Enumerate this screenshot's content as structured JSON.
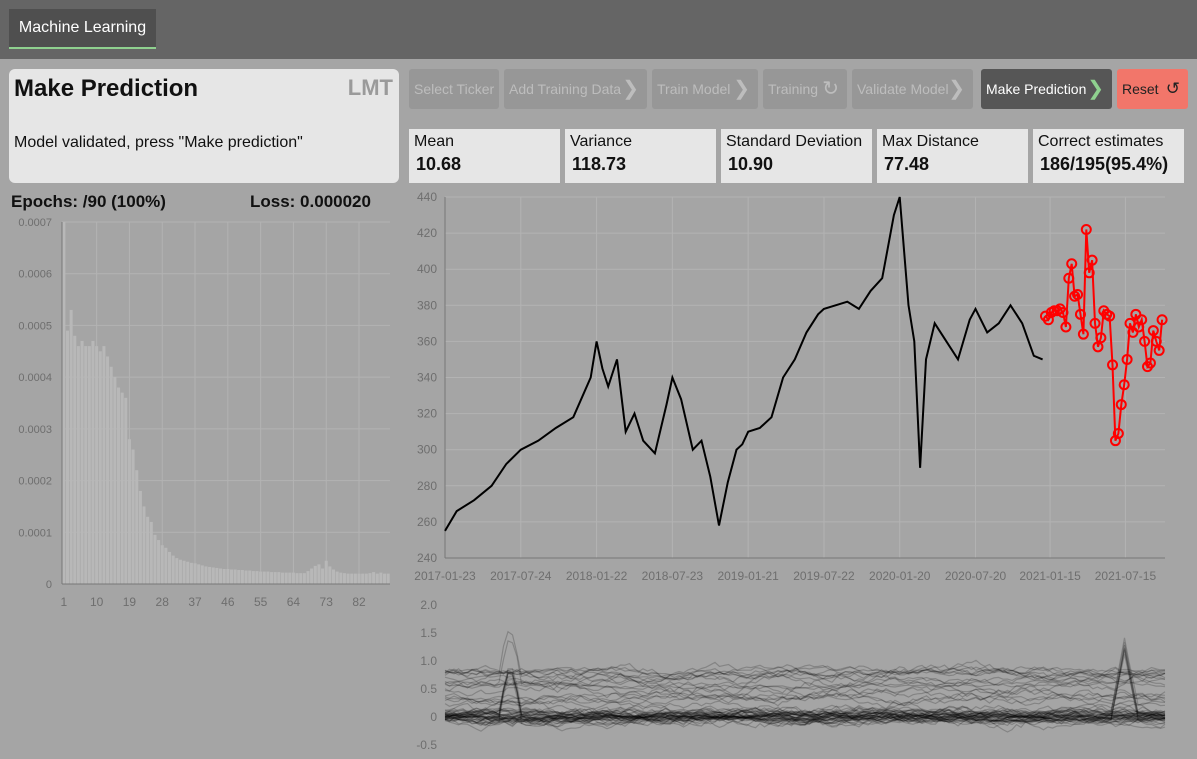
{
  "nav": {
    "tab_label": "Machine Learning"
  },
  "panel": {
    "title": "Make Prediction",
    "ticker": "LMT",
    "message": "Model validated, press \"Make prediction\""
  },
  "steps": [
    {
      "label": "Select Ticker",
      "icon": "",
      "state": "disabled"
    },
    {
      "label": "Add Training Data",
      "icon": "chevron-right-icon",
      "state": "disabled"
    },
    {
      "label": "Train Model",
      "icon": "chevron-right-icon",
      "state": "disabled"
    },
    {
      "label": "Training",
      "icon": "refresh-icon",
      "state": "disabled"
    },
    {
      "label": "Validate Model",
      "icon": "chevron-right-icon",
      "state": "disabled"
    },
    {
      "label": "Make Prediction",
      "icon": "chevron-right-icon",
      "state": "active"
    },
    {
      "label": "Reset",
      "icon": "reset-icon",
      "state": "danger"
    }
  ],
  "stats": [
    {
      "label": "Mean",
      "value": "10.68"
    },
    {
      "label": "Variance",
      "value": "118.73"
    },
    {
      "label": "Standard Deviation",
      "value": "10.90"
    },
    {
      "label": "Max Distance",
      "value": "77.48"
    },
    {
      "label": "Correct estimates",
      "value": "186/195(95.4%)"
    }
  ],
  "training": {
    "epochs_text": "Epochs: /90 (100%)",
    "loss_text": "Loss: 0.000020"
  },
  "colors": {
    "accent_green": "#8fd18f",
    "prediction_red": "#ff0000",
    "reset_red": "#f2766a"
  },
  "chart_data": [
    {
      "type": "bar",
      "name": "loss-history",
      "ylim": [
        0,
        0.0007
      ],
      "ytick_labels": [
        "0",
        "0.0001",
        "0.0002",
        "0.0003",
        "0.0004",
        "0.0005",
        "0.0006",
        "0.0007"
      ],
      "xtick_labels": [
        "1",
        "10",
        "19",
        "28",
        "37",
        "46",
        "55",
        "64",
        "73",
        "82"
      ],
      "values": [
        0.0007,
        0.00049,
        0.00053,
        0.00048,
        0.00046,
        0.00047,
        0.00046,
        0.00046,
        0.00047,
        0.00046,
        0.00045,
        0.00046,
        0.00044,
        0.00042,
        0.0004,
        0.00038,
        0.00037,
        0.00036,
        0.00028,
        0.00026,
        0.00022,
        0.00018,
        0.00015,
        0.00013,
        0.00012,
        9.5e-05,
        8.5e-05,
        7.5e-05,
        7e-05,
        6.2e-05,
        5.5e-05,
        5e-05,
        4.7e-05,
        4.5e-05,
        4.3e-05,
        4.1e-05,
        4e-05,
        3.8e-05,
        3.6e-05,
        3.4e-05,
        3.3e-05,
        3.2e-05,
        3.1e-05,
        3e-05,
        2.9e-05,
        2.9e-05,
        2.8e-05,
        2.8e-05,
        2.7e-05,
        2.7e-05,
        2.6e-05,
        2.6e-05,
        2.5e-05,
        2.5e-05,
        2.4e-05,
        2.4e-05,
        2.4e-05,
        2.3e-05,
        2.3e-05,
        2.3e-05,
        2.2e-05,
        2.2e-05,
        2.2e-05,
        2.2e-05,
        2.1e-05,
        2.1e-05,
        2.1e-05,
        2.5e-05,
        3e-05,
        3.5e-05,
        3.8e-05,
        3e-05,
        4.5e-05,
        3.4e-05,
        2.8e-05,
        2.4e-05,
        2.2e-05,
        2.1e-05,
        2e-05,
        2e-05,
        2e-05,
        2e-05,
        2e-05,
        2e-05,
        2.1e-05,
        2.3e-05,
        2e-05,
        2.2e-05,
        2e-05,
        2e-05
      ]
    },
    {
      "type": "line",
      "name": "price-history",
      "ylim": [
        240,
        440
      ],
      "ytick_labels": [
        "240",
        "260",
        "280",
        "300",
        "320",
        "340",
        "360",
        "380",
        "400",
        "420",
        "440"
      ],
      "xtick_labels": [
        "2017-01-23",
        "2017-07-24",
        "2018-01-22",
        "2018-07-23",
        "2019-01-21",
        "2019-07-22",
        "2020-01-20",
        "2020-07-20",
        "2021-01-15",
        "2021-07-15"
      ],
      "series": [
        {
          "role": "actual",
          "color": "#000000",
          "x": [
            "2017-01-23",
            "2017-02-20",
            "2017-04-03",
            "2017-05-15",
            "2017-06-19",
            "2017-07-24",
            "2017-09-04",
            "2017-10-16",
            "2017-11-27",
            "2018-01-08",
            "2018-01-22",
            "2018-02-05",
            "2018-02-19",
            "2018-03-12",
            "2018-04-02",
            "2018-04-23",
            "2018-05-14",
            "2018-06-11",
            "2018-07-09",
            "2018-07-23",
            "2018-08-13",
            "2018-09-10",
            "2018-10-01",
            "2018-10-22",
            "2018-11-12",
            "2018-12-03",
            "2018-12-24",
            "2019-01-07",
            "2019-01-21",
            "2019-02-18",
            "2019-03-18",
            "2019-04-15",
            "2019-05-13",
            "2019-06-10",
            "2019-07-08",
            "2019-07-22",
            "2019-08-19",
            "2019-09-16",
            "2019-10-14",
            "2019-11-11",
            "2019-12-09",
            "2020-01-06",
            "2020-01-20",
            "2020-02-10",
            "2020-02-24",
            "2020-03-09",
            "2020-03-23",
            "2020-04-13",
            "2020-05-11",
            "2020-06-08",
            "2020-07-06",
            "2020-07-20",
            "2020-08-17",
            "2020-09-14",
            "2020-10-12",
            "2020-11-09",
            "2020-12-07",
            "2020-12-28"
          ],
          "y": [
            255,
            266,
            272,
            280,
            292,
            300,
            305,
            312,
            318,
            340,
            360,
            345,
            335,
            350,
            310,
            320,
            305,
            298,
            325,
            340,
            328,
            300,
            305,
            285,
            258,
            282,
            300,
            303,
            310,
            312,
            318,
            340,
            350,
            365,
            375,
            378,
            380,
            382,
            378,
            388,
            395,
            430,
            440,
            380,
            360,
            290,
            350,
            370,
            360,
            350,
            372,
            378,
            365,
            370,
            380,
            370,
            352,
            350
          ]
        },
        {
          "role": "prediction",
          "color": "#ff0000",
          "x": [
            "2021-01-04",
            "2021-01-11",
            "2021-01-18",
            "2021-01-25",
            "2021-02-01",
            "2021-02-08",
            "2021-02-15",
            "2021-02-22",
            "2021-03-01",
            "2021-03-08",
            "2021-03-15",
            "2021-03-22",
            "2021-03-29",
            "2021-04-05",
            "2021-04-12",
            "2021-04-19",
            "2021-04-26",
            "2021-05-03",
            "2021-05-10",
            "2021-05-17",
            "2021-05-24",
            "2021-05-31",
            "2021-06-07",
            "2021-06-14",
            "2021-06-21",
            "2021-06-28",
            "2021-07-05",
            "2021-07-12",
            "2021-07-19",
            "2021-07-26",
            "2021-08-02",
            "2021-08-09",
            "2021-08-16",
            "2021-08-23",
            "2021-08-30",
            "2021-09-06",
            "2021-09-13",
            "2021-09-20",
            "2021-09-27",
            "2021-10-04",
            "2021-10-11"
          ],
          "y": [
            374,
            372,
            376,
            377,
            377,
            378,
            376,
            368,
            395,
            403,
            385,
            386,
            375,
            364,
            422,
            398,
            405,
            370,
            357,
            362,
            377,
            375,
            374,
            347,
            305,
            309,
            325,
            336,
            350,
            370,
            365,
            375,
            368,
            372,
            360,
            346,
            348,
            366,
            360,
            355,
            372
          ]
        }
      ]
    },
    {
      "type": "line",
      "name": "feature-traces",
      "ylim": [
        -0.5,
        2.0
      ],
      "ytick_labels": [
        "-0.5",
        "0",
        "0.5",
        "1.0",
        "1.5",
        "2.0"
      ],
      "note_series_count": 60
    }
  ]
}
